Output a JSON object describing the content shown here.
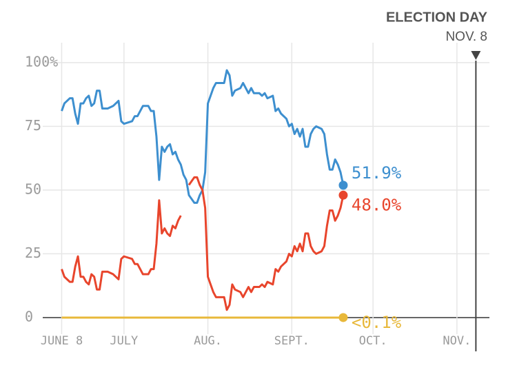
{
  "chart_data": {
    "type": "line",
    "x": [
      0,
      1,
      3,
      4,
      5,
      6,
      7,
      8,
      9,
      10,
      11,
      12,
      13,
      14,
      15,
      17,
      19,
      21,
      22,
      23,
      26,
      27,
      28,
      30,
      32,
      33,
      34,
      35,
      36,
      37,
      38,
      39,
      40,
      41,
      42,
      43,
      44,
      45,
      46,
      47,
      49,
      50,
      51,
      52,
      53,
      54,
      55,
      56,
      57,
      59,
      60,
      61,
      62,
      63,
      64,
      66,
      67,
      69,
      70,
      71,
      72,
      73,
      74,
      75,
      76,
      78,
      79,
      80,
      81,
      83,
      84,
      85,
      86,
      87,
      88,
      89,
      90,
      91,
      92,
      93,
      94,
      96,
      97,
      98,
      99,
      100,
      101,
      102,
      103,
      104
    ],
    "series": [
      {
        "color": "#3d8fcf",
        "end_label": "51.9%",
        "values": [
          81,
          84,
          86,
          86,
          80,
          76,
          84,
          84,
          86,
          87,
          83,
          84,
          89,
          89,
          82,
          82,
          83,
          85,
          77,
          76,
          77,
          79,
          79,
          83,
          83,
          81,
          81,
          71,
          54,
          67,
          65,
          67,
          68,
          64,
          65,
          62,
          60,
          56,
          54,
          48,
          45,
          45,
          48,
          50,
          57,
          84,
          87,
          90,
          92,
          92,
          92,
          97,
          95,
          87,
          89,
          90,
          92,
          88,
          90,
          88,
          88,
          88,
          87,
          88,
          86,
          87,
          81,
          82,
          80,
          78,
          75,
          76,
          72,
          74,
          71,
          74,
          67,
          67,
          72,
          74,
          75,
          74,
          72,
          64,
          58,
          58,
          62,
          60,
          57,
          51.9
        ]
      },
      {
        "color": "#e8452c",
        "end_label": "48.0%",
        "values": [
          19,
          16,
          14,
          14,
          20,
          24,
          16,
          16,
          14,
          13,
          17,
          16,
          11,
          11,
          18,
          18,
          17,
          15,
          23,
          24,
          23,
          21,
          21,
          17,
          17,
          19,
          19,
          29,
          46,
          33,
          35,
          33,
          32,
          36,
          35,
          38,
          40,
          null,
          null,
          52,
          55,
          55,
          52,
          50,
          43,
          16,
          13,
          10,
          8,
          8,
          8,
          3,
          5,
          13,
          11,
          10,
          8,
          12,
          10,
          12,
          12,
          12,
          13,
          12,
          14,
          13,
          19,
          18,
          20,
          22,
          25,
          24,
          28,
          26,
          29,
          26,
          33,
          33,
          28,
          26,
          25,
          26,
          28,
          36,
          42,
          42,
          38,
          40,
          43,
          48.0
        ]
      },
      {
        "color": "#e8b83a",
        "end_label": "<0.1%",
        "values": [
          0,
          0,
          0,
          0,
          0,
          0,
          0,
          0,
          0,
          0,
          0,
          0,
          0,
          0,
          0,
          0,
          0,
          0,
          0,
          0,
          0,
          0,
          0,
          0,
          0,
          0,
          0,
          0,
          0,
          0,
          0,
          0,
          0,
          0,
          0,
          0,
          0,
          0,
          0,
          0,
          0,
          0,
          0,
          0,
          0,
          0,
          0,
          0,
          0,
          0,
          0,
          0,
          0,
          0,
          0,
          0,
          0,
          0,
          0,
          0,
          0,
          0,
          0,
          0,
          0,
          0,
          0,
          0,
          0,
          0,
          0,
          0,
          0,
          0,
          0,
          0,
          0,
          0,
          0,
          0,
          0,
          0,
          0,
          0,
          0,
          0,
          0,
          0,
          0,
          0
        ]
      }
    ],
    "xlim": [
      -7,
      158
    ],
    "xticks": [
      {
        "value": 0,
        "label": "JUNE 8"
      },
      {
        "value": 23,
        "label": "JULY"
      },
      {
        "value": 54,
        "label": "AUG."
      },
      {
        "value": 85,
        "label": "SEPT."
      },
      {
        "value": 115,
        "label": "OCT."
      },
      {
        "value": 146,
        "label": "NOV."
      }
    ],
    "ylim": [
      -6.5,
      107.8
    ],
    "yticks": [
      0,
      25,
      50,
      75,
      {
        "value": 100,
        "label": "100%"
      }
    ],
    "grid": true,
    "annotation": {
      "title": "ELECTION DAY",
      "subtitle": "NOV. 8",
      "x": 153
    }
  }
}
